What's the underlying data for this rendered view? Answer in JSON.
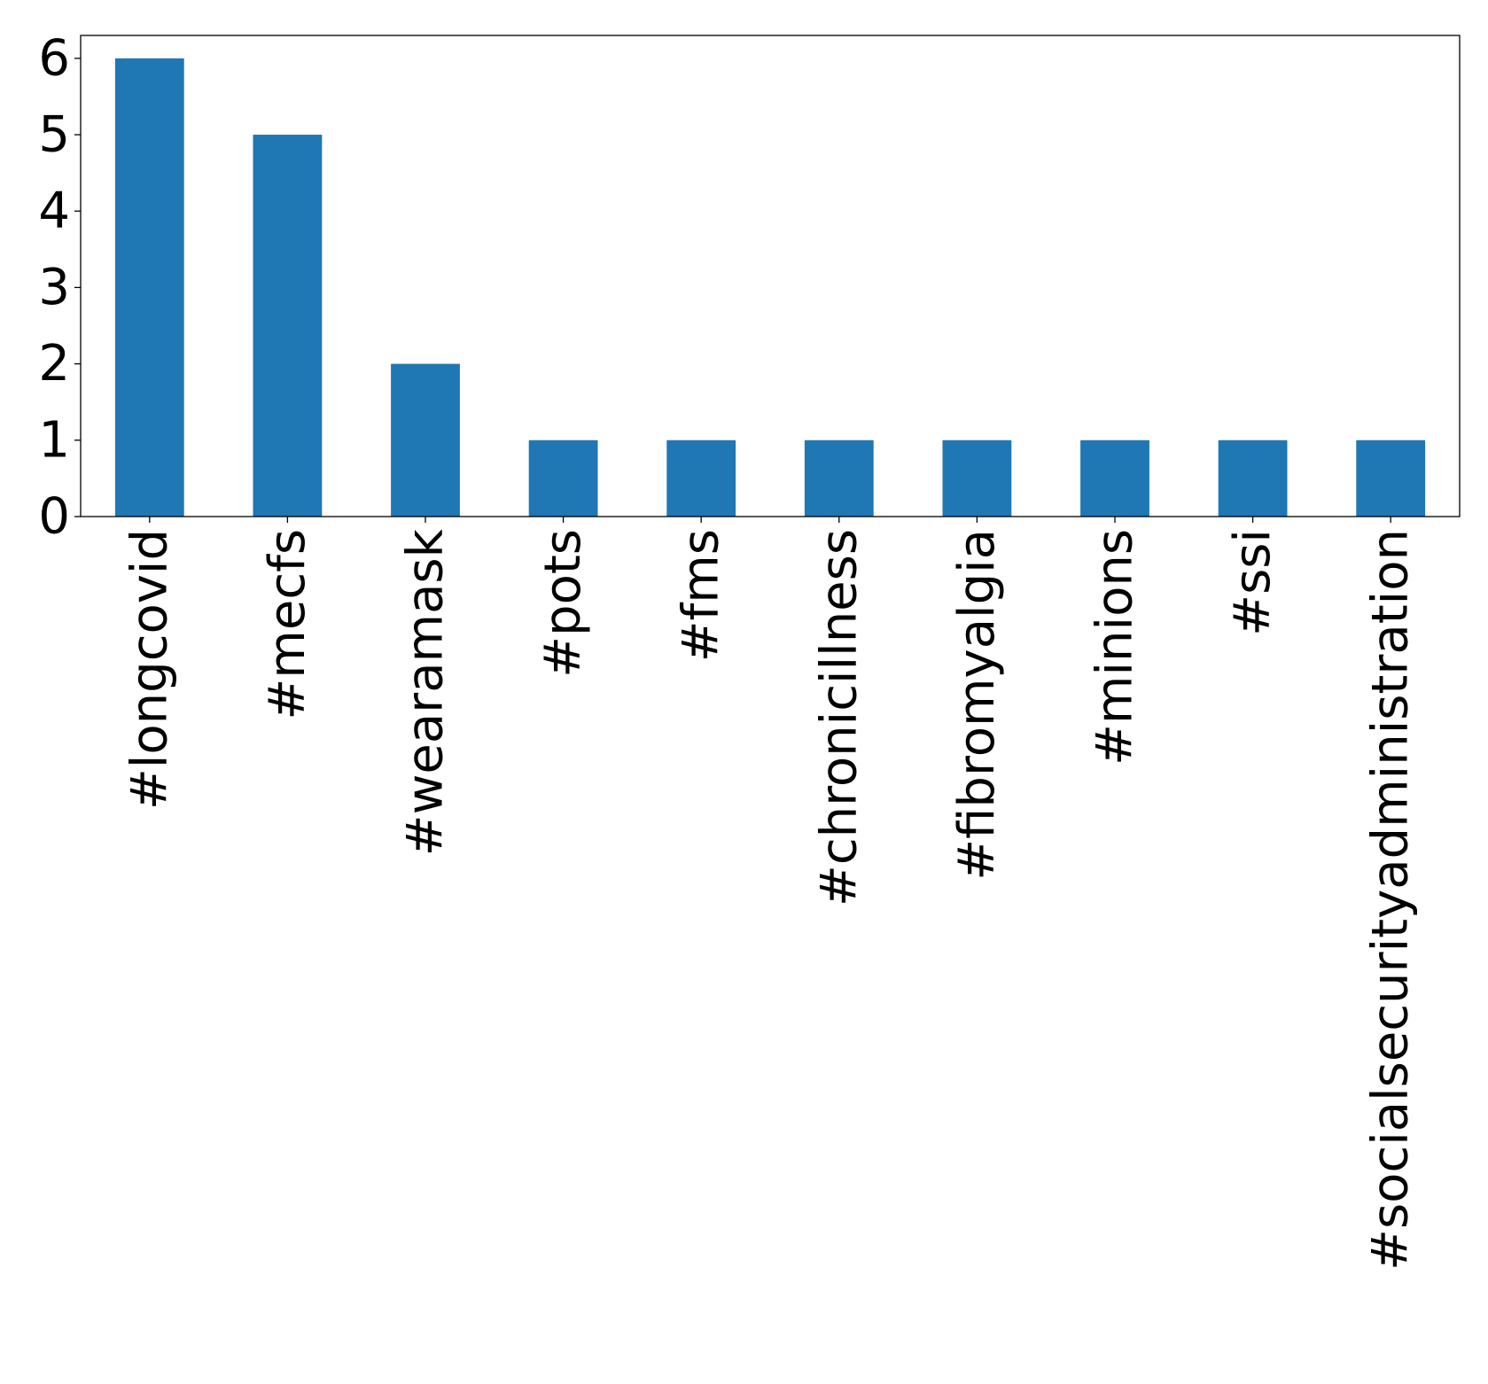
{
  "chart_data": {
    "type": "bar",
    "categories": [
      "#longcovid",
      "#mecfs",
      "#wearamask",
      "#pots",
      "#fms",
      "#chronicillness",
      "#fibromyalgia",
      "#minions",
      "#ssi",
      "#socialsecurityadministration"
    ],
    "values": [
      6,
      5,
      2,
      1,
      1,
      1,
      1,
      1,
      1,
      1
    ],
    "title": "",
    "xlabel": "",
    "ylabel": "",
    "ylim": [
      0,
      6.3
    ],
    "yticks": [
      0,
      1,
      2,
      3,
      4,
      5,
      6
    ],
    "grid": false,
    "legend": "none",
    "bar_color": "#1f77b4"
  }
}
